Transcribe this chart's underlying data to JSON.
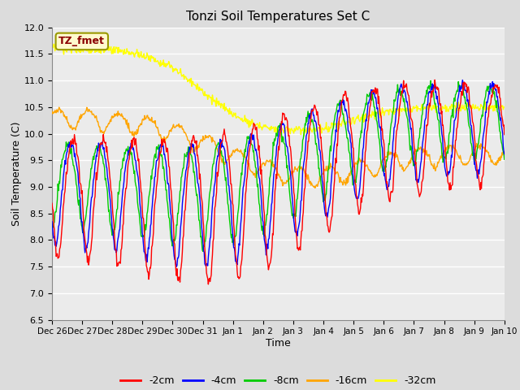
{
  "title": "Tonzi Soil Temperatures Set C",
  "xlabel": "Time",
  "ylabel": "Soil Temperature (C)",
  "ylim": [
    6.5,
    12.0
  ],
  "annotation_text": "TZ_fmet",
  "annotation_color": "#8B0000",
  "annotation_bg": "#FFFACD",
  "legend_entries": [
    "-2cm",
    "-4cm",
    "-8cm",
    "-16cm",
    "-32cm"
  ],
  "line_colors": [
    "#FF0000",
    "#0000FF",
    "#00CC00",
    "#FFA500",
    "#FFFF00"
  ],
  "tick_labels": [
    "Dec 26",
    "Dec 27",
    "Dec 28",
    "Dec 29",
    "Dec 30",
    "Dec 31",
    "Jan 1",
    "Jan 2",
    "Jan 3",
    "Jan 4",
    "Jan 5",
    "Jan 6",
    "Jan 7",
    "Jan 8",
    "Jan 9",
    "Jan 10"
  ],
  "yticks": [
    6.5,
    7.0,
    7.5,
    8.0,
    8.5,
    9.0,
    9.5,
    10.0,
    10.5,
    11.0,
    11.5,
    12.0
  ]
}
